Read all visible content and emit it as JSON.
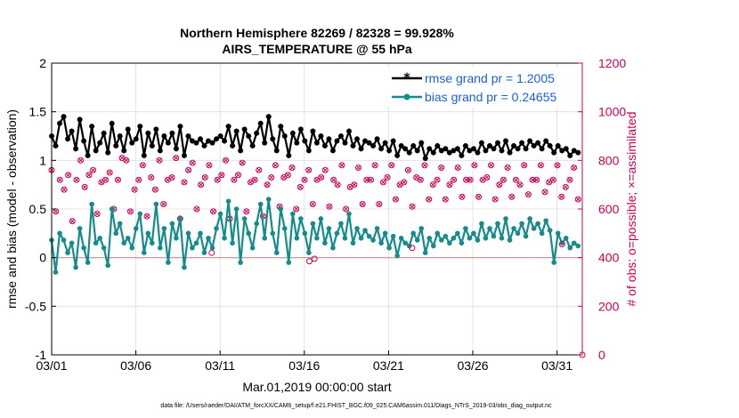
{
  "chart_data": {
    "type": "line",
    "title": "Northern Hemisphere 82269 / 82328 = 99.928%",
    "subtitle": "AIRS_TEMPERATURE @ 55 hPa",
    "xlabel": "Mar.01,2019 00:00:00 start",
    "ylabel": "rmse and bias (model - observation)",
    "y2label": "# of obs: o=possible; ×=assimilated",
    "xlim": [
      0,
      31.5
    ],
    "ylim": [
      -1,
      2
    ],
    "y2lim": [
      0,
      1200
    ],
    "xticks": [
      0,
      5,
      10,
      15,
      20,
      25,
      30
    ],
    "xticklabels": [
      "03/01",
      "03/06",
      "03/11",
      "03/16",
      "03/21",
      "03/26",
      "03/31"
    ],
    "yticks": [
      -1,
      -0.5,
      0,
      0.5,
      1,
      1.5,
      2
    ],
    "yticklabels": [
      "-1",
      "-0.5",
      "0",
      "0.5",
      "1",
      "1.5",
      "2"
    ],
    "y2ticks": [
      0,
      200,
      400,
      600,
      800,
      1000,
      1200
    ],
    "y2ticklabels": [
      "0",
      "200",
      "400",
      "600",
      "800",
      "1000",
      "1200"
    ],
    "grid": true,
    "legend_position": "top-right",
    "series": [
      {
        "name": "rmse grand pr = 1.2005",
        "axis": "left",
        "color": "#000000",
        "values": [
          1.25,
          1.15,
          1.38,
          1.45,
          1.22,
          1.3,
          1.12,
          1.42,
          1.2,
          1.05,
          1.35,
          1.1,
          1.18,
          1.28,
          1.08,
          1.38,
          1.15,
          1.25,
          1.1,
          1.32,
          1.18,
          1.22,
          1.35,
          1.05,
          1.28,
          1.15,
          1.32,
          1.1,
          1.25,
          1.18,
          1.28,
          1.12,
          1.35,
          1.05,
          1.25,
          1.2,
          1.18,
          1.22,
          1.15,
          1.2,
          1.18,
          1.22,
          1.25,
          1.2,
          1.35,
          1.15,
          1.3,
          1.1,
          1.32,
          1.25,
          1.15,
          1.28,
          1.38,
          1.18,
          1.45,
          1.22,
          1.1,
          1.35,
          1.25,
          1.05,
          1.28,
          1.18,
          1.32,
          1.2,
          1.1,
          1.3,
          1.18,
          1.25,
          1.15,
          1.22,
          1.1,
          1.2,
          1.25,
          1.18,
          1.3,
          1.15,
          1.22,
          1.12,
          1.2,
          1.18,
          1.15,
          1.22,
          1.12,
          1.18,
          1.1,
          1.2,
          1.05,
          1.15,
          1.12,
          1.08,
          1.15,
          1.1,
          1.18,
          1.02,
          1.12,
          1.08,
          1.15,
          1.1,
          1.12,
          1.08,
          1.1,
          1.12,
          1.05,
          1.15,
          1.1,
          1.12,
          1.08,
          1.18,
          1.1,
          1.15,
          1.12,
          1.18,
          1.1,
          1.2,
          1.08,
          1.15,
          1.12,
          1.18,
          1.12,
          1.2,
          1.15,
          1.18,
          1.12,
          1.2,
          1.15,
          1.08,
          1.15,
          1.1,
          1.12,
          1.05,
          1.1,
          1.08
        ]
      },
      {
        "name": "bias grand pr = 0.24655",
        "axis": "left",
        "color": "#158c8c",
        "values": [
          0.18,
          -0.15,
          0.25,
          0.18,
          0.05,
          0.15,
          -0.1,
          0.3,
          0.1,
          -0.05,
          0.55,
          0.15,
          0.2,
          0.1,
          -0.08,
          0.5,
          0.25,
          0.35,
          0.15,
          0.2,
          0.1,
          0.3,
          0.45,
          0.05,
          0.25,
          0.15,
          0.55,
          0.1,
          0.3,
          -0.05,
          0.35,
          0.2,
          0.4,
          -0.1,
          0.25,
          0.1,
          0.15,
          0.25,
          0.05,
          0.2,
          0.1,
          0.3,
          0.45,
          0.2,
          0.58,
          0.15,
          0.5,
          -0.05,
          0.4,
          0.25,
          0.1,
          0.35,
          0.55,
          0.2,
          0.6,
          0.25,
          0.05,
          0.5,
          0.3,
          -0.05,
          0.45,
          0.2,
          0.4,
          0.25,
          0.05,
          0.35,
          0.2,
          0.4,
          0.15,
          0.3,
          0.1,
          0.25,
          0.35,
          0.2,
          0.45,
          0.15,
          0.3,
          0.2,
          0.28,
          0.22,
          0.18,
          0.3,
          0.15,
          0.25,
          0.1,
          0.22,
          0.02,
          0.2,
          0.15,
          0.12,
          0.25,
          0.18,
          0.3,
          0.05,
          0.2,
          0.12,
          0.25,
          0.18,
          0.22,
          0.15,
          0.2,
          0.25,
          0.15,
          0.3,
          0.2,
          0.25,
          0.18,
          0.35,
          0.2,
          0.3,
          0.22,
          0.35,
          0.2,
          0.4,
          0.18,
          0.3,
          0.25,
          0.35,
          0.22,
          0.4,
          0.3,
          0.35,
          0.25,
          0.38,
          0.28,
          -0.05,
          0.25,
          0.15,
          0.2,
          0.1,
          0.15,
          0.12
        ]
      }
    ],
    "obs_series": {
      "name": "# of obs possible",
      "axis": "right",
      "color": "#cc0055",
      "values": [
        760,
        590,
        720,
        680,
        740,
        550,
        720,
        800,
        690,
        740,
        760,
        580,
        710,
        720,
        750,
        600,
        720,
        810,
        800,
        590,
        680,
        720,
        780,
        570,
        730,
        680,
        800,
        620,
        720,
        730,
        810,
        560,
        710,
        760,
        790,
        600,
        700,
        730,
        780,
        590,
        720,
        740,
        800,
        560,
        720,
        740,
        790,
        590,
        710,
        720,
        760,
        570,
        700,
        730,
        780,
        610,
        730,
        740,
        770,
        600,
        690,
        720,
        760,
        620,
        720,
        730,
        760,
        610,
        720,
        700,
        780,
        600,
        690,
        700,
        770,
        620,
        720,
        720,
        780,
        620,
        710,
        730,
        780,
        640,
        700,
        710,
        760,
        610,
        730,
        720,
        780,
        640,
        700,
        720,
        770,
        640,
        700,
        720,
        770,
        650,
        720,
        720,
        780,
        650,
        720,
        730,
        780,
        640,
        700,
        720,
        770,
        650,
        720,
        700,
        780,
        660,
        720,
        720,
        780,
        670,
        710,
        720,
        780,
        650,
        690,
        720,
        770,
        640
      ]
    },
    "obs_assimilated": {
      "name": "# of obs assimilated",
      "axis": "right",
      "color": "#cc0055",
      "values": [
        760,
        590,
        720,
        680,
        740,
        550,
        720,
        800,
        690,
        740,
        760,
        580,
        710,
        720,
        750,
        600,
        720,
        810,
        800,
        590,
        680,
        720,
        780,
        570,
        730,
        680,
        800,
        620,
        720,
        730,
        810,
        560,
        710,
        760,
        790,
        600,
        700,
        730,
        780,
        590,
        720,
        740,
        800,
        560,
        720,
        740,
        790,
        590,
        710,
        720,
        760,
        570,
        700,
        730,
        780,
        610,
        730,
        740,
        770,
        600,
        690,
        720,
        760,
        620,
        720,
        730,
        760,
        610,
        720,
        700,
        780,
        600,
        690,
        700,
        770,
        620,
        720,
        720,
        780,
        620,
        710,
        730,
        780,
        640,
        700,
        710,
        760,
        610,
        730,
        720,
        780,
        640,
        700,
        720,
        770,
        640,
        700,
        720,
        770,
        650,
        720,
        720,
        780,
        650,
        720,
        730,
        780,
        640,
        700,
        720,
        770,
        650,
        720,
        700,
        780,
        660,
        720,
        720,
        780,
        670,
        710,
        720,
        780,
        650,
        690,
        720,
        770,
        640
      ]
    },
    "extra_points_right": [
      {
        "x": 9.5,
        "y": 420
      },
      {
        "x": 15.3,
        "y": 385
      },
      {
        "x": 15.6,
        "y": 395
      },
      {
        "x": 21.4,
        "y": 440
      },
      {
        "x": 30.3,
        "y": 455
      },
      {
        "x": 31.5,
        "y": 0
      }
    ],
    "footnote": "data file: /Users/raeder/DAI/ATM_forcXX/CAM6_setup/f.e21.FHIST_BGC.f09_025.CAM6assim.011/Diags_NTrS_2019-03/obs_diag_output.nc"
  },
  "colors": {
    "left_axis": "#000000",
    "right_axis": "#cc0055",
    "legend_text": "#1a5fe0",
    "zero_line": "#c09090",
    "grid": "#dddddd"
  }
}
